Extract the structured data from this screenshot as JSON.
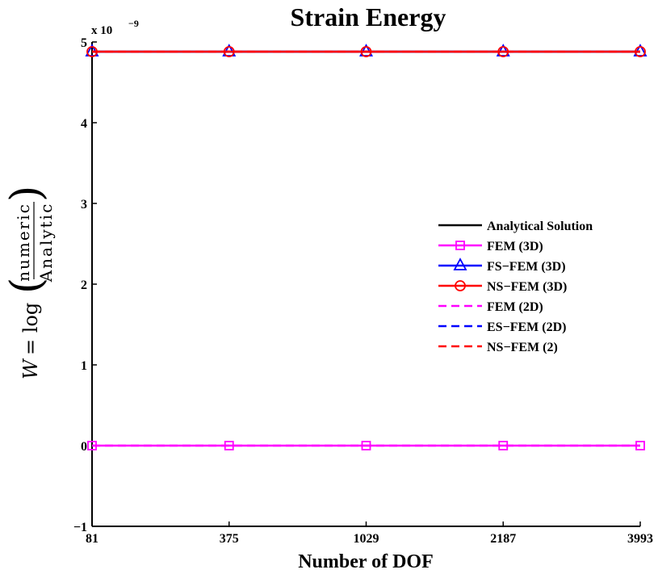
{
  "chart_data": {
    "type": "line",
    "title": "Strain Energy",
    "xlabel": "Number of DOF",
    "ylabel": {
      "lhs": "W",
      "eq": "= log",
      "numerator": "numeric",
      "denominator": "Analytic"
    },
    "y_multiplier": {
      "base": "x 10",
      "exponent": "−9"
    },
    "categories": [
      "81",
      "375",
      "1029",
      "2187",
      "3993"
    ],
    "ylim": [
      -1,
      5
    ],
    "yticks": [
      {
        "value": -1,
        "label": "−1"
      },
      {
        "value": 0,
        "label": "0"
      },
      {
        "value": 1,
        "label": "1"
      },
      {
        "value": 2,
        "label": "2"
      },
      {
        "value": 3,
        "label": "3"
      },
      {
        "value": 4,
        "label": "4"
      },
      {
        "value": 5,
        "label": "5"
      }
    ],
    "grid": false,
    "legend_position": "right-center",
    "series": [
      {
        "name": "Analytical Solution",
        "color": "#000000",
        "style": "solid",
        "marker": "none",
        "values": [
          4.88,
          4.88,
          4.88,
          4.88,
          4.88
        ]
      },
      {
        "name": "FEM (3D)",
        "color": "#ff00ff",
        "style": "solid",
        "marker": "square",
        "values": [
          0,
          0,
          0,
          0,
          0
        ]
      },
      {
        "name": "FS−FEM (3D)",
        "color": "#0000ff",
        "style": "solid",
        "marker": "triangle",
        "values": [
          4.88,
          4.88,
          4.88,
          4.88,
          4.88
        ]
      },
      {
        "name": "NS−FEM (3D)",
        "color": "#ff0000",
        "style": "solid",
        "marker": "circle",
        "values": [
          4.88,
          4.88,
          4.88,
          4.88,
          4.88
        ]
      },
      {
        "name": "FEM (2D)",
        "color": "#ff00ff",
        "style": "dashed",
        "marker": "none",
        "values": [
          0,
          0,
          0,
          0,
          0
        ]
      },
      {
        "name": "ES−FEM (2D)",
        "color": "#0000ff",
        "style": "dashed",
        "marker": "none",
        "values": [
          4.88,
          4.88,
          4.88,
          4.88,
          4.88
        ]
      },
      {
        "name": "NS−FEM (2)",
        "color": "#ff0000",
        "style": "dashed",
        "marker": "none",
        "values": [
          4.88,
          4.88,
          4.88,
          4.88,
          4.88
        ]
      }
    ]
  }
}
